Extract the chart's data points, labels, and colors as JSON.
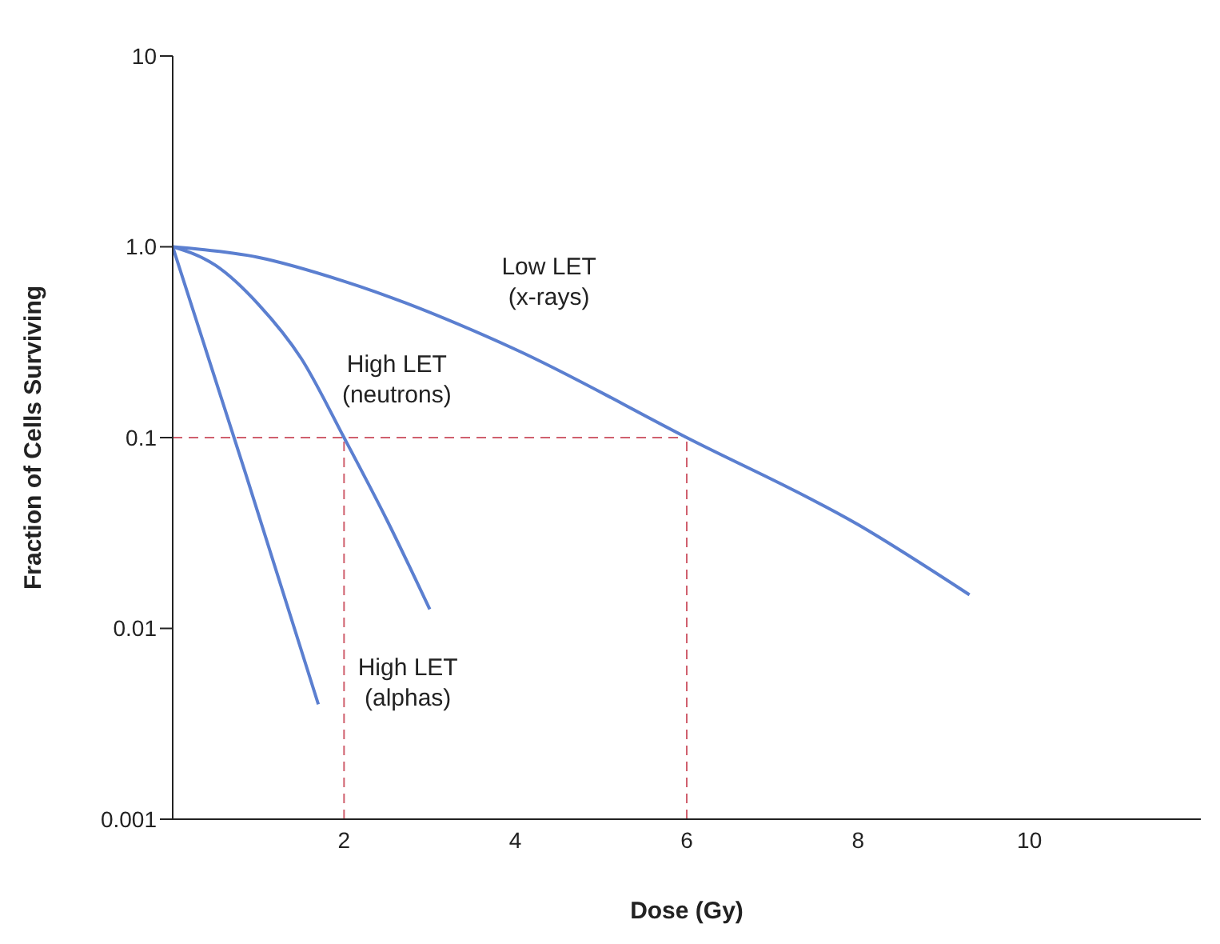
{
  "chart_data": {
    "type": "line",
    "xlabel": "Dose (Gy)",
    "ylabel": "Fraction of Cells Surviving",
    "log": "y",
    "xlim": [
      0,
      12
    ],
    "xticks": [
      2,
      4,
      6,
      8,
      10
    ],
    "ylim": [
      0.001,
      10
    ],
    "yticks": [
      {
        "value": 0.001,
        "label": "0.001"
      },
      {
        "value": 0.01,
        "label": "0.01"
      },
      {
        "value": 0.1,
        "label": "0.1"
      },
      {
        "value": 1,
        "label": "1.0"
      },
      {
        "value": 10,
        "label": "10"
      }
    ],
    "marker": "none",
    "line_style": "solid",
    "series": [
      {
        "name": "Low LET (x-rays)",
        "color": "#5b7fd0",
        "x": [
          0,
          1,
          2,
          4,
          6,
          8,
          9.3
        ],
        "values": [
          1,
          0.88,
          0.66,
          0.29,
          0.1,
          0.035,
          0.015
        ]
      },
      {
        "name": "High LET (neutrons)",
        "color": "#5b7fd0",
        "x": [
          0,
          0.5,
          1,
          1.5,
          2,
          2.5,
          3
        ],
        "values": [
          1,
          0.8,
          0.5,
          0.26,
          0.1,
          0.037,
          0.0126
        ]
      },
      {
        "name": "High LET (alphas)",
        "color": "#5b7fd0",
        "x": [
          0,
          0.85,
          1.7
        ],
        "values": [
          1,
          0.065,
          0.004
        ]
      }
    ],
    "ref_lines": [
      {
        "axis": "y",
        "value": 0.1,
        "color": "#d0606e",
        "line_style": "dashed"
      },
      {
        "axis": "x",
        "value": 2,
        "color": "#d0606e",
        "line_style": "dashed"
      },
      {
        "axis": "x",
        "value": 6,
        "color": "#d0606e",
        "line_style": "dashed"
      }
    ]
  }
}
